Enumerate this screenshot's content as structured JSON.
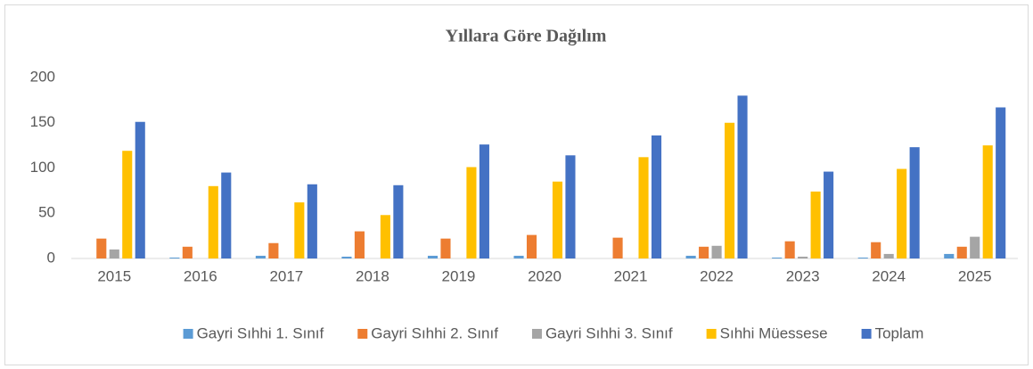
{
  "chart_data": {
    "type": "bar",
    "title": "Yıllara Göre Dağılım",
    "categories": [
      "2015",
      "2016",
      "2017",
      "2018",
      "2019",
      "2020",
      "2021",
      "2022",
      "2023",
      "2024",
      "2025"
    ],
    "series": [
      {
        "name": "Gayri Sıhhi 1. Sınıf",
        "color": "#5b9bd5",
        "values": [
          0,
          1,
          3,
          2,
          3,
          3,
          0,
          3,
          1,
          1,
          5
        ]
      },
      {
        "name": "Gayri Sıhhi 2. Sınıf",
        "color": "#ed7d31",
        "values": [
          22,
          13,
          17,
          30,
          22,
          26,
          23,
          13,
          19,
          18,
          13
        ]
      },
      {
        "name": "Gayri Sıhhi 3. Sınıf",
        "color": "#a5a5a5",
        "values": [
          10,
          0,
          0,
          0,
          0,
          0,
          0,
          14,
          2,
          5,
          24
        ]
      },
      {
        "name": "Sıhhi Müessese",
        "color": "#ffc000",
        "values": [
          119,
          80,
          62,
          48,
          101,
          85,
          112,
          150,
          74,
          99,
          125
        ]
      },
      {
        "name": "Toplam",
        "color": "#4472c4",
        "values": [
          151,
          95,
          82,
          81,
          126,
          114,
          136,
          180,
          96,
          123,
          167
        ]
      }
    ],
    "ylim": [
      0,
      200
    ],
    "yticks": [
      0,
      50,
      100,
      150,
      200
    ],
    "grid": false,
    "legend": "bottom"
  }
}
